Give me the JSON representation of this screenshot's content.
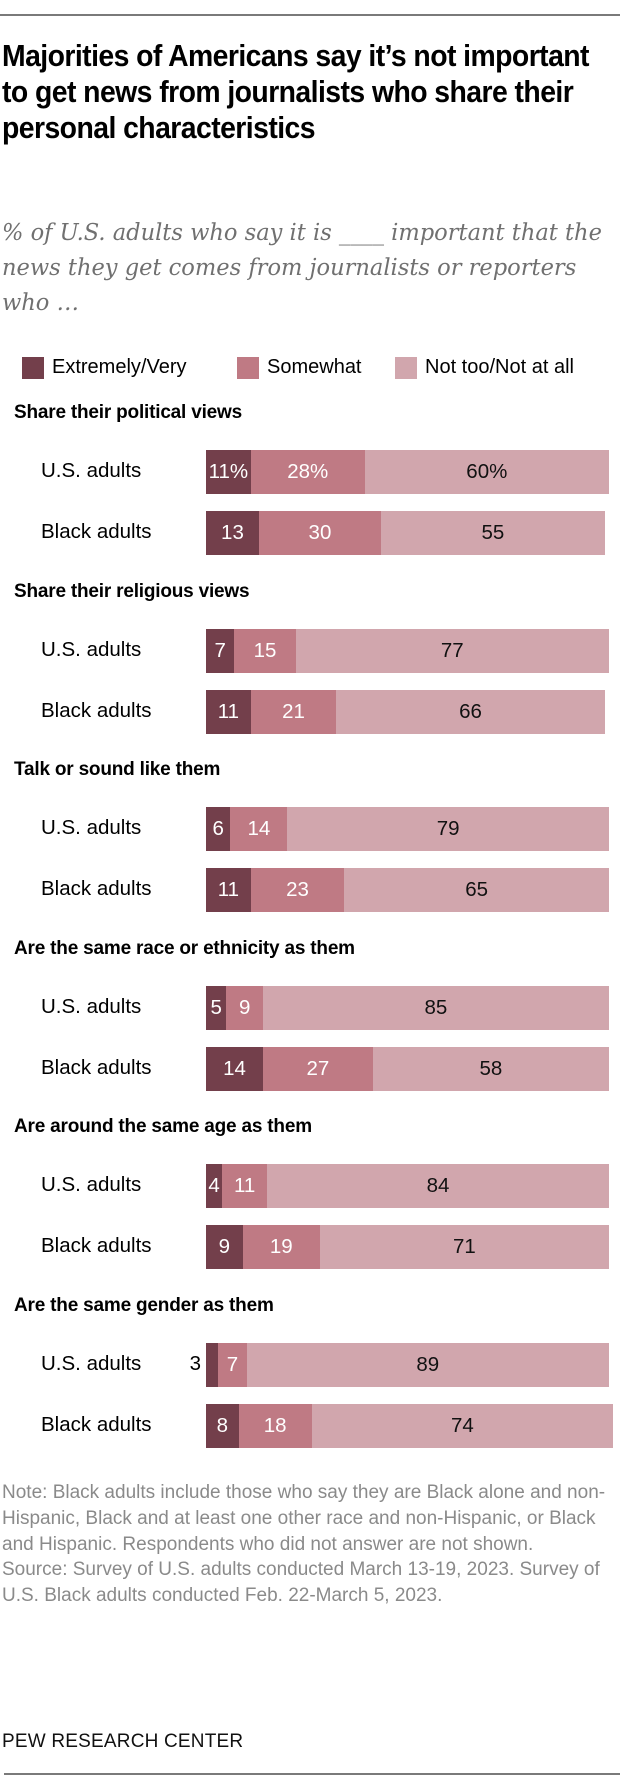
{
  "title": "Majorities of Americans say it’s not important to get news from journalists who share their personal characteristics",
  "subtitle": "% of U.S. adults who say it is ____ important that the news they get comes from journalists or reporters who …",
  "chart_data": {
    "type": "bar",
    "orientation": "horizontal-stacked",
    "title": "Majorities of Americans say it’s not important to get news from journalists who share their personal characteristics",
    "subtitle": "% of U.S. adults who say it is ____ important that the news they get comes from journalists or reporters who …",
    "legend": [
      {
        "name": "Extremely/Very",
        "color": "#733f4b"
      },
      {
        "name": "Somewhat",
        "color": "#bf7a84"
      },
      {
        "name": "Not too/Not at all",
        "color": "#d1a6ad"
      }
    ],
    "legend_position": "top",
    "xlim": [
      0,
      100
    ],
    "groups": [
      {
        "title": "Share their political views",
        "rows": [
          {
            "label": "U.S. adults",
            "values": [
              11,
              28,
              60
            ],
            "labels": [
              "11%",
              "28%",
              "60%"
            ]
          },
          {
            "label": "Black adults",
            "values": [
              13,
              30,
              55
            ],
            "labels": [
              "13",
              "30",
              "55"
            ]
          }
        ]
      },
      {
        "title": "Share their religious views",
        "rows": [
          {
            "label": "U.S. adults",
            "values": [
              7,
              15,
              77
            ],
            "labels": [
              "7",
              "15",
              "77"
            ]
          },
          {
            "label": "Black adults",
            "values": [
              11,
              21,
              66
            ],
            "labels": [
              "11",
              "21",
              "66"
            ]
          }
        ]
      },
      {
        "title": "Talk or sound like them",
        "rows": [
          {
            "label": "U.S. adults",
            "values": [
              6,
              14,
              79
            ],
            "labels": [
              "6",
              "14",
              "79"
            ]
          },
          {
            "label": "Black adults",
            "values": [
              11,
              23,
              65
            ],
            "labels": [
              "11",
              "23",
              "65"
            ]
          }
        ]
      },
      {
        "title": "Are the same race or ethnicity as them",
        "rows": [
          {
            "label": "U.S. adults",
            "values": [
              5,
              9,
              85
            ],
            "labels": [
              "5",
              "9",
              "85"
            ]
          },
          {
            "label": "Black adults",
            "values": [
              14,
              27,
              58
            ],
            "labels": [
              "14",
              "27",
              "58"
            ]
          }
        ]
      },
      {
        "title": "Are around the same age as them",
        "rows": [
          {
            "label": "U.S. adults",
            "values": [
              4,
              11,
              84
            ],
            "labels": [
              "4",
              "11",
              "84"
            ]
          },
          {
            "label": "Black adults",
            "values": [
              9,
              19,
              71
            ],
            "labels": [
              "9",
              "19",
              "71"
            ]
          }
        ]
      },
      {
        "title": "Are the same gender as them",
        "rows": [
          {
            "label": "U.S. adults",
            "values": [
              3,
              7,
              89
            ],
            "labels": [
              "3",
              "7",
              "89"
            ],
            "first_label_outside": true
          },
          {
            "label": "Black adults",
            "values": [
              8,
              18,
              74
            ],
            "labels": [
              "8",
              "18",
              "74"
            ]
          }
        ]
      }
    ]
  },
  "notes": {
    "note": "Note: Black adults include those who say they are Black alone and non-Hispanic, Black and at least one other race and non-Hispanic, or Black and Hispanic. Respondents who did not answer are not shown.",
    "source": "Source: Survey of U.S. adults conducted March 13-19, 2023. Survey of U.S. Black adults conducted Feb. 22-March 5, 2023."
  },
  "brand": "PEW RESEARCH CENTER"
}
